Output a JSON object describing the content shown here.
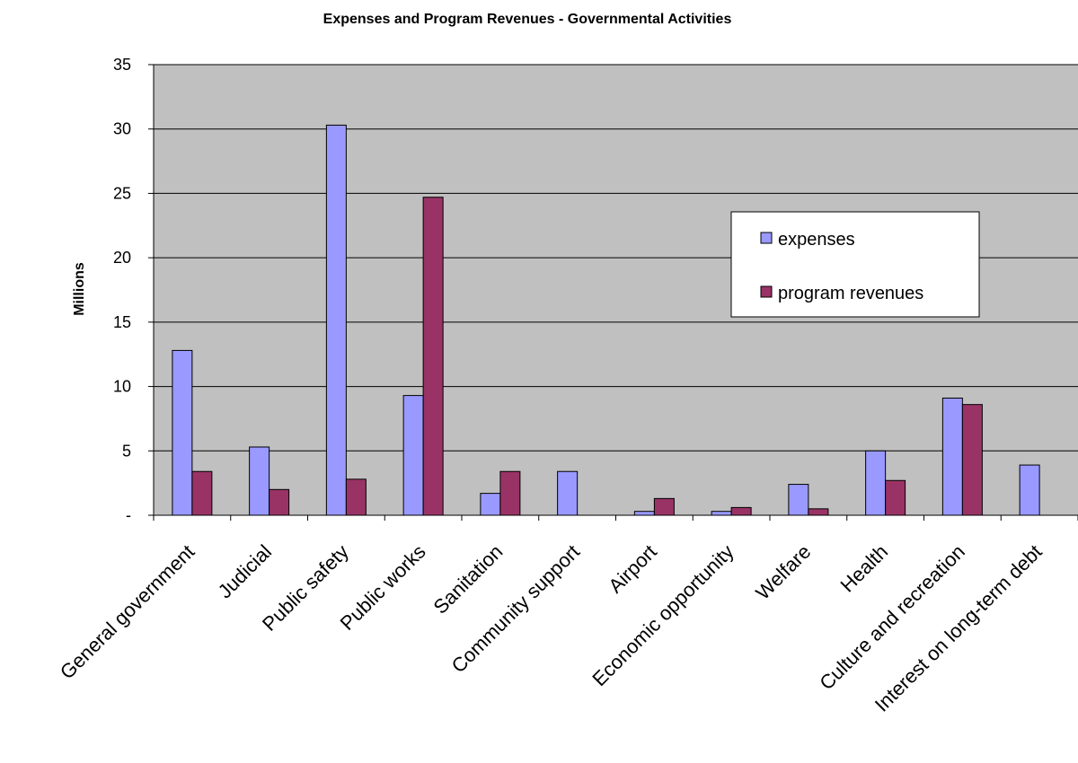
{
  "chart_data": {
    "type": "bar",
    "title": "Expenses and Program Revenues - Governmental Activities",
    "ylabel": "Millions",
    "xlabel": "",
    "ylim": [
      0,
      35
    ],
    "yticks": [
      0,
      5,
      10,
      15,
      20,
      25,
      30,
      35
    ],
    "ytick_labels": [
      "-",
      "5",
      "10",
      "15",
      "20",
      "25",
      "30",
      "35"
    ],
    "grid": true,
    "legend_position": "upper-right inside plot",
    "plot_background": "#c0c0c0",
    "categories": [
      "General government",
      "Judicial",
      "Public safety",
      "Public works",
      "Sanitation",
      "Community support",
      "Airport",
      "Economic opportunity",
      "Welfare",
      "Health",
      "Culture and recreation",
      "Interest on long-term debt"
    ],
    "series": [
      {
        "name": "expenses",
        "color": "#9999ff",
        "values": [
          12.8,
          5.3,
          30.3,
          9.3,
          1.7,
          3.4,
          0.3,
          0.3,
          2.4,
          5.0,
          9.1,
          3.9
        ]
      },
      {
        "name": "program revenues",
        "color": "#993366",
        "values": [
          3.4,
          2.0,
          2.8,
          24.7,
          3.4,
          0.0,
          1.3,
          0.6,
          0.5,
          2.7,
          8.6,
          0.0
        ]
      }
    ]
  }
}
